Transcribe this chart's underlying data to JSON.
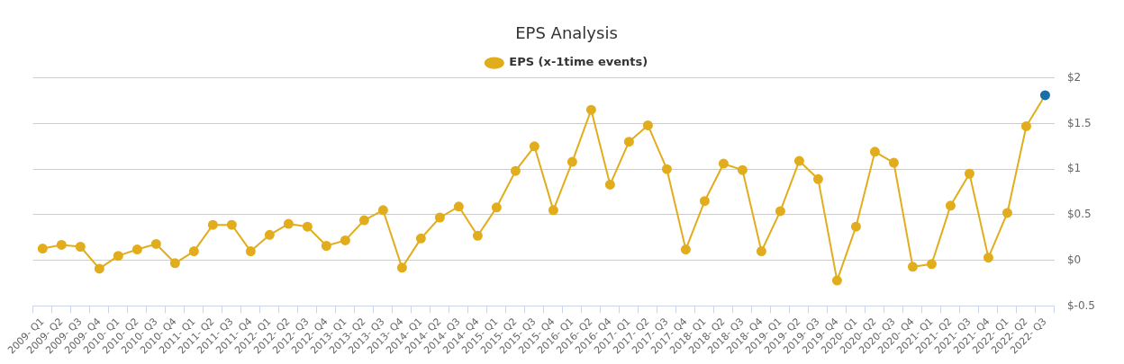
{
  "chart_data": {
    "type": "line",
    "title": "EPS Analysis",
    "categories": [
      "2009- Q1",
      "2009- Q2",
      "2009- Q3",
      "2009- Q4",
      "2010- Q1",
      "2010- Q2",
      "2010- Q3",
      "2010- Q4",
      "2011- Q1",
      "2011- Q2",
      "2011- Q3",
      "2011- Q4",
      "2012- Q1",
      "2012- Q2",
      "2012- Q3",
      "2012- Q4",
      "2013- Q1",
      "2013- Q2",
      "2013- Q3",
      "2013- Q4",
      "2014- Q1",
      "2014- Q2",
      "2014- Q3",
      "2014- Q4",
      "2015- Q1",
      "2015- Q2",
      "2015- Q3",
      "2015- Q4",
      "2016- Q1",
      "2016- Q2",
      "2016- Q4",
      "2017- Q1",
      "2017- Q2",
      "2017- Q3",
      "2017- Q4",
      "2018- Q1",
      "2018- Q2",
      "2018- Q3",
      "2018- Q4",
      "2019- Q1",
      "2019- Q2",
      "2019- Q3",
      "2019- Q4",
      "2020- Q1",
      "2020- Q2",
      "2020- Q3",
      "2020- Q4",
      "2021- Q1",
      "2021- Q2",
      "2021- Q3",
      "2021- Q4",
      "2022- Q1",
      "2022- Q2",
      "2022- Q3"
    ],
    "series": [
      {
        "name": "EPS (x-1time events)",
        "color": "#e2ad1c",
        "colors": [
          "#e2ad1c",
          "#e2ad1c",
          "#e2ad1c",
          "#e2ad1c",
          "#e2ad1c",
          "#e2ad1c",
          "#e2ad1c",
          "#e2ad1c",
          "#e2ad1c",
          "#e2ad1c",
          "#e2ad1c",
          "#e2ad1c",
          "#e2ad1c",
          "#e2ad1c",
          "#e2ad1c",
          "#e2ad1c",
          "#e2ad1c",
          "#e2ad1c",
          "#e2ad1c",
          "#e2ad1c",
          "#e2ad1c",
          "#e2ad1c",
          "#e2ad1c",
          "#e2ad1c",
          "#e2ad1c",
          "#e2ad1c",
          "#e2ad1c",
          "#e2ad1c",
          "#e2ad1c",
          "#e2ad1c",
          "#e2ad1c",
          "#e2ad1c",
          "#e2ad1c",
          "#e2ad1c",
          "#e2ad1c",
          "#e2ad1c",
          "#e2ad1c",
          "#e2ad1c",
          "#e2ad1c",
          "#e2ad1c",
          "#e2ad1c",
          "#e2ad1c",
          "#e2ad1c",
          "#e2ad1c",
          "#e2ad1c",
          "#e2ad1c",
          "#e2ad1c",
          "#e2ad1c",
          "#e2ad1c",
          "#e2ad1c",
          "#e2ad1c",
          "#e2ad1c",
          "#e2ad1c",
          "#1a6fa8"
        ],
        "values": [
          0.13,
          0.17,
          0.15,
          -0.09,
          0.05,
          0.12,
          0.18,
          -0.03,
          0.1,
          0.39,
          0.39,
          0.1,
          0.28,
          0.4,
          0.37,
          0.16,
          0.22,
          0.44,
          0.55,
          -0.08,
          0.24,
          0.47,
          0.59,
          0.27,
          0.58,
          0.98,
          1.25,
          0.55,
          1.08,
          1.65,
          0.83,
          1.3,
          1.48,
          1.0,
          0.12,
          0.65,
          1.06,
          0.99,
          0.1,
          0.54,
          1.09,
          0.89,
          -0.22,
          0.37,
          1.19,
          1.07,
          -0.07,
          -0.04,
          0.6,
          0.95,
          0.03,
          0.52,
          1.47,
          1.81
        ]
      }
    ],
    "ylim": [
      -0.5,
      2
    ],
    "yticks": [
      {
        "value": -0.5,
        "label": "$-0.5"
      },
      {
        "value": 0,
        "label": "$0"
      },
      {
        "value": 0.5,
        "label": "$0.5"
      },
      {
        "value": 1,
        "label": "$1"
      },
      {
        "value": 1.5,
        "label": "$1.5"
      },
      {
        "value": 2,
        "label": "$2"
      }
    ],
    "grid": "y",
    "legend": "top",
    "marker": "circle",
    "line_style": "solid"
  }
}
